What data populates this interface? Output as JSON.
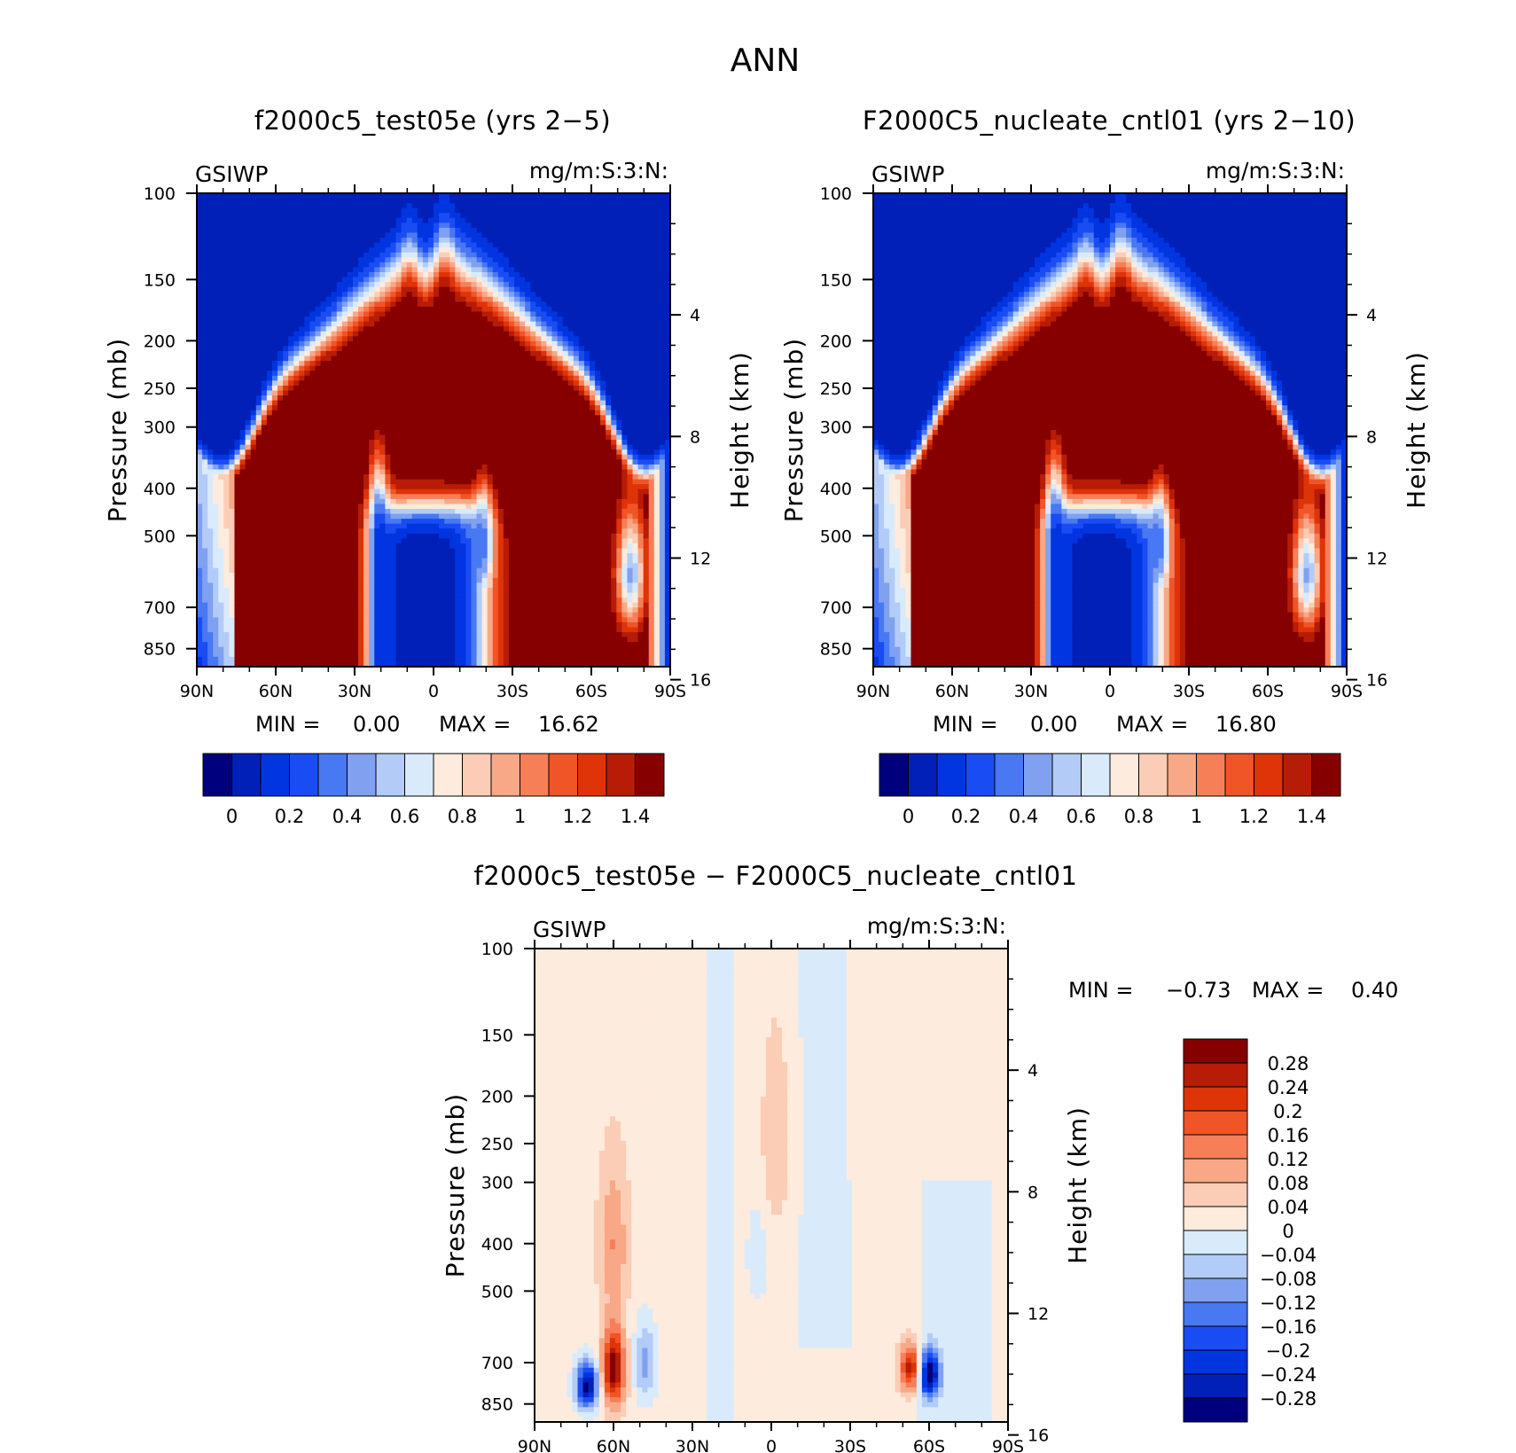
{
  "figure": {
    "title": "ANN",
    "colors": {
      "absolute_scale": [
        "#00007f",
        "#0020b8",
        "#0035e0",
        "#1a4cf4",
        "#4878f2",
        "#7fa1f0",
        "#b3cbf7",
        "#d9ebfb",
        "#fdebdd",
        "#fbcdb6",
        "#f8a887",
        "#f67f58",
        "#f05528",
        "#df3308",
        "#b61c06",
        "#860000"
      ],
      "difference_scale": [
        "#00007f",
        "#0020b8",
        "#0035e0",
        "#1a4cf4",
        "#4878f2",
        "#7fa1f0",
        "#b3cbf7",
        "#d9ebfb",
        "#fdebdd",
        "#fbcdb6",
        "#f8a887",
        "#f67f58",
        "#f05528",
        "#df3308",
        "#b61c06",
        "#860000"
      ]
    }
  },
  "chart_data": [
    {
      "id": "test",
      "type": "heatmap",
      "title": "f2000c5_test05e (yrs 2−5)",
      "variable": "GSIWP",
      "units": "mg/m:S:3:N:",
      "ylabel": "Pressure (mb)",
      "ylabel_right": "Height (km)",
      "x_ticks": [
        "90N",
        "60N",
        "30N",
        "0",
        "30S",
        "60S",
        "90S"
      ],
      "y_ticks": [
        "100",
        "150",
        "200",
        "250",
        "300",
        "400",
        "500",
        "700",
        "850"
      ],
      "y_ticks_right": [
        "16",
        "12",
        "8",
        "4"
      ],
      "min_label": "MIN =",
      "min_value": "0.00",
      "max_label": "MAX =",
      "max_value": "16.62",
      "levels": [
        "0",
        "0.2",
        "0.4",
        "0.6",
        "0.8",
        "1",
        "1.2",
        "1.4"
      ]
    },
    {
      "id": "cntl",
      "type": "heatmap",
      "title": "F2000C5_nucleate_cntl01 (yrs 2−10)",
      "variable": "GSIWP",
      "units": "mg/m:S:3:N:",
      "ylabel": "Pressure (mb)",
      "ylabel_right": "Height (km)",
      "x_ticks": [
        "90N",
        "60N",
        "30N",
        "0",
        "30S",
        "60S",
        "90S"
      ],
      "y_ticks": [
        "100",
        "150",
        "200",
        "250",
        "300",
        "400",
        "500",
        "700",
        "850"
      ],
      "y_ticks_right": [
        "16",
        "12",
        "8",
        "4"
      ],
      "min_label": "MIN =",
      "min_value": "0.00",
      "max_label": "MAX =",
      "max_value": "16.80",
      "levels": [
        "0",
        "0.2",
        "0.4",
        "0.6",
        "0.8",
        "1",
        "1.2",
        "1.4"
      ]
    },
    {
      "id": "diff",
      "type": "heatmap",
      "title": "f2000c5_test05e − F2000C5_nucleate_cntl01",
      "variable": "GSIWP",
      "units": "mg/m:S:3:N:",
      "ylabel": "Pressure (mb)",
      "ylabel_right": "Height (km)",
      "x_ticks": [
        "90N",
        "60N",
        "30N",
        "0",
        "30S",
        "60S",
        "90S"
      ],
      "y_ticks": [
        "100",
        "150",
        "200",
        "250",
        "300",
        "400",
        "500",
        "700",
        "850"
      ],
      "y_ticks_right": [
        "16",
        "12",
        "8",
        "4"
      ],
      "min_label": "MIN =",
      "min_value": "−0.73",
      "max_label": "MAX =",
      "max_value": "0.40",
      "levels": [
        "0.28",
        "0.24",
        "0.2",
        "0.16",
        "0.12",
        "0.08",
        "0.04",
        "0",
        "−0.04",
        "−0.08",
        "−0.12",
        "−0.16",
        "−0.2",
        "−0.24",
        "−0.28"
      ]
    }
  ]
}
